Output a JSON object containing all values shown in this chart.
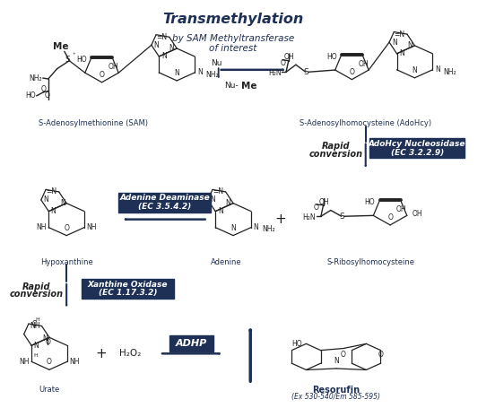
{
  "bg_color": "#ffffff",
  "dark_blue": "#1e3055",
  "bk": "#222222",
  "fig_width": 5.52,
  "fig_height": 4.55,
  "dpi": 100,
  "title": "Transmethylation",
  "sub1": "by SAM Methyltransferase",
  "sub2": "of interest",
  "sam_label": "S-Adenosylmethionine (SAM)",
  "adohcy_label": "S-Adenosylhomocysteine (AdoHcy)",
  "nuc_box1": "AdoHcy Nucleosidase",
  "nuc_box2": "(EC 3.2.2.9)",
  "rapid1a": "Rapid",
  "rapid1b": "conversion",
  "ade_box1": "Adenine Deaminase",
  "ade_box2": "(EC 3.5.4.2)",
  "hypo_label": "Hypoxanthine",
  "adenine_label": "Adenine",
  "srib_label": "S-Ribosylhomocysteine",
  "rapid2a": "Rapid",
  "rapid2b": "conversion",
  "xan_box1": "Xanthine Oxidase",
  "xan_box2": "(EC 1.17.3.2)",
  "urate_label": "Urate",
  "adhp_label": "ADHP",
  "resoru_label": "Resorufin",
  "resoru_sub": "(Ex 530-540/Em 585-595)"
}
